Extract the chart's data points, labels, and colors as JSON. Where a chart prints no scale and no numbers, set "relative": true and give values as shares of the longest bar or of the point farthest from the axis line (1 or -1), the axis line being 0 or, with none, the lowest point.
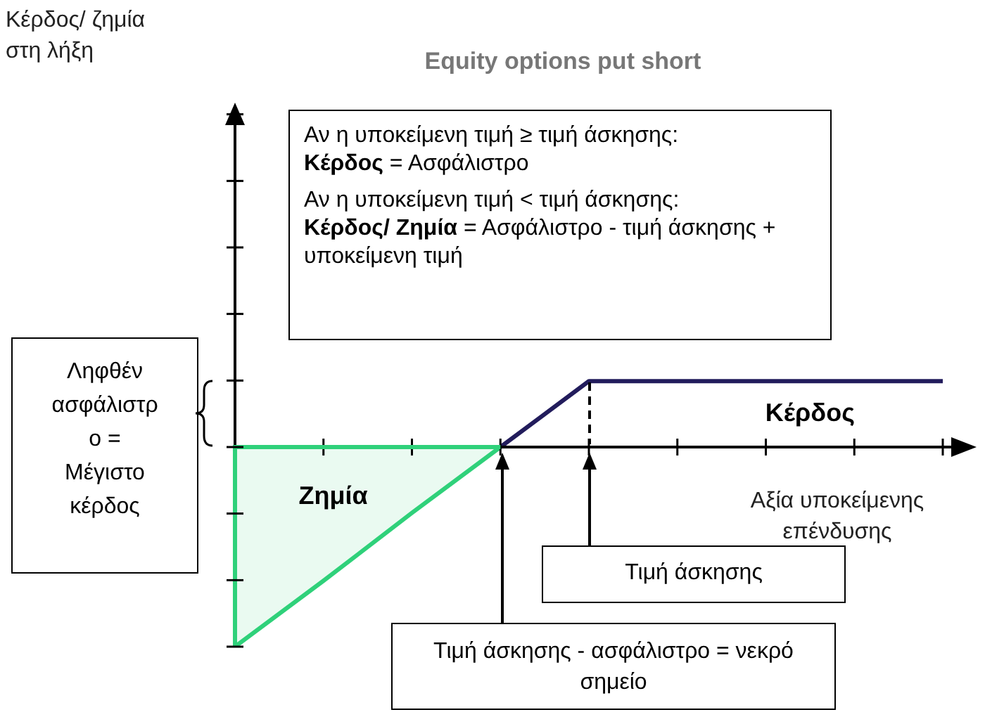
{
  "chart_data": {
    "type": "line",
    "relative": true,
    "title": "Equity options put short",
    "xlabel": "Αξία υποκείμενης\nεπένδυσης",
    "categories": [
      null,
      null,
      null,
      null,
      null,
      null,
      null,
      null,
      null
    ],
    "series": [
      {
        "name": "Ζημία",
        "type": "area",
        "color": "#2fd17a",
        "values": [
          -1,
          -0.67,
          -0.33,
          0,
          null,
          null,
          null,
          null,
          null
        ]
      },
      {
        "name": "Κέρδος",
        "color": "#221c5c",
        "values": [
          null,
          null,
          null,
          0,
          0.33,
          0.33,
          0.33,
          0.33,
          0.33
        ]
      }
    ],
    "marker": "none",
    "legend": false,
    "annotations": [
      "Αν η υποκείμενη τιμή ≥ τιμή άσκησης:",
      "Κέρδος",
      "= Ασφάλιστρο",
      "Αν η υποκείμενη τιμή < τιμή άσκησης:",
      "Κέρδος/ Ζημία",
      "= Ασφάλιστρο - τιμή άσκησης + υποκείμενη τιμή",
      "Ληφθέν ασφάλιστρο = Μέγιστο κέρδος",
      "Τιμή άσκησης",
      "Τιμή άσκησης - ασφάλιστρο = νεκρό σημείο",
      "Κέρδος/ ζημία\nστη λήξη"
    ]
  }
}
